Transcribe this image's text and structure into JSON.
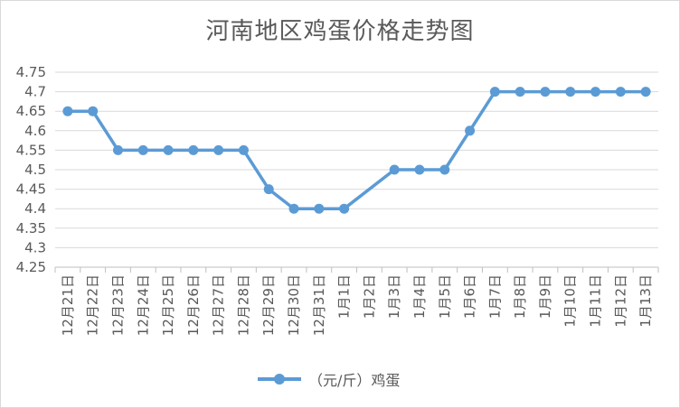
{
  "chart_data": {
    "type": "line",
    "title": "河南地区鸡蛋价格走势图",
    "xlabel": "",
    "ylabel": "",
    "categories": [
      "12月21日",
      "12月22日",
      "12月23日",
      "12月24日",
      "12月25日",
      "12月26日",
      "12月27日",
      "12月28日",
      "12月29日",
      "12月30日",
      "12月31日",
      "1月1日",
      "1月2日",
      "1月3日",
      "1月4日",
      "1月5日",
      "1月6日",
      "1月7日",
      "1月8日",
      "1月9日",
      "1月10日",
      "1月11日",
      "1月12日",
      "1月13日"
    ],
    "y_ticks": [
      "4.25",
      "4.3",
      "4.35",
      "4.4",
      "4.45",
      "4.5",
      "4.55",
      "4.6",
      "4.65",
      "4.7",
      "4.75"
    ],
    "ylim": [
      4.25,
      4.75
    ],
    "grid": true,
    "legend_position": "bottom",
    "series": [
      {
        "name": "（元/斤）鸡蛋",
        "color": "#5b9bd5",
        "values": [
          4.65,
          4.65,
          4.55,
          4.55,
          4.55,
          4.55,
          4.55,
          4.55,
          4.45,
          4.4,
          4.4,
          4.4,
          null,
          4.5,
          4.5,
          4.5,
          4.6,
          4.7,
          4.7,
          4.7,
          4.7,
          4.7,
          4.7,
          4.7
        ]
      }
    ]
  }
}
